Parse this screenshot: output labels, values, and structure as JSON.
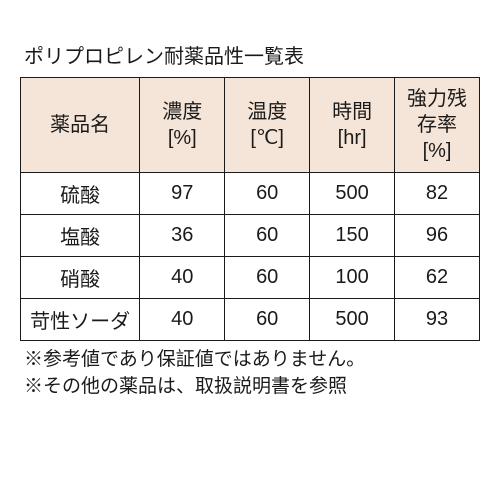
{
  "title": "ポリプロピレン耐薬品性一覧表",
  "columns": [
    {
      "label": "薬品名",
      "unit": ""
    },
    {
      "label": "濃度",
      "unit": "[%]"
    },
    {
      "label": "温度",
      "unit": "[℃]"
    },
    {
      "label": "時間",
      "unit": "[hr]"
    },
    {
      "label": "強力残存率",
      "unit": "[%]"
    }
  ],
  "rows": [
    {
      "name": "硫酸",
      "conc": "97",
      "temp": "60",
      "time": "500",
      "ratio": "82"
    },
    {
      "name": "塩酸",
      "conc": "36",
      "temp": "60",
      "time": "150",
      "ratio": "96"
    },
    {
      "name": "硝酸",
      "conc": "40",
      "temp": "60",
      "time": "100",
      "ratio": "62"
    },
    {
      "name": "苛性ソーダ",
      "conc": "40",
      "temp": "60",
      "time": "500",
      "ratio": "93"
    }
  ],
  "notes": [
    "※参考値であり保証値ではありません。",
    "※その他の薬品は、取扱説明書を参照"
  ],
  "style": {
    "header_bg": "#f5e5d8",
    "border_color": "#1a1a1a",
    "text_color": "#1a1a1a",
    "title_fontsize": 20,
    "cell_fontsize": 20,
    "note_fontsize": 19
  }
}
